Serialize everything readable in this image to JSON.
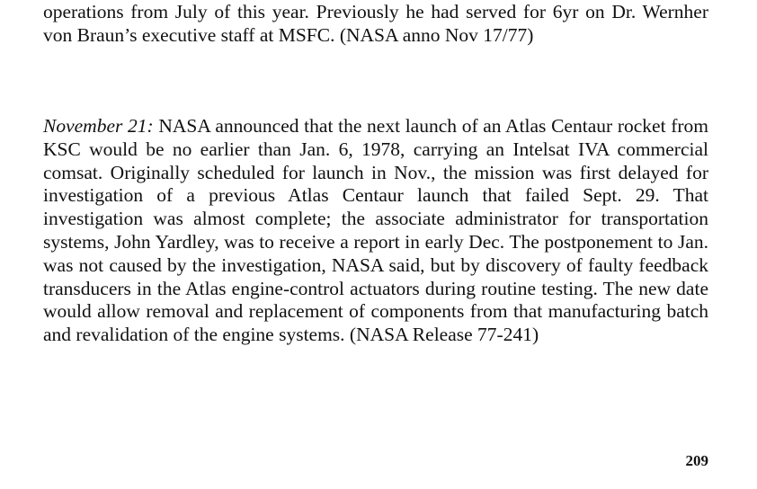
{
  "continued_paragraph": "operations from July of this year. Previously he had served for 6yr on Dr. Wernher von Braun’s executive staff at MSFC. (NASA anno Nov 17/77)",
  "entry": {
    "date": "November 21:",
    "text": " NASA announced that the next launch of an Atlas Centaur rocket from KSC would be no earlier than Jan. 6, 1978, carrying an Intelsat IVA commercial comsat. Originally scheduled for launch in Nov., the mission was first delayed for investigation of a previous Atlas Centaur launch that failed Sept. 29. That investigation was almost complete; the associate administrator for transportation systems, John Yardley, was to receive a report in early Dec. The postponement to Jan. was not caused by the investigation, NASA said, but by discovery of faulty feedback transducers in the Atlas engine-control actuators during routine testing. The new date would allow removal and replacement of components from that manufacturing batch and revalidation of the engine systems. (NASA Release 77-241)"
  },
  "page_number": "209"
}
